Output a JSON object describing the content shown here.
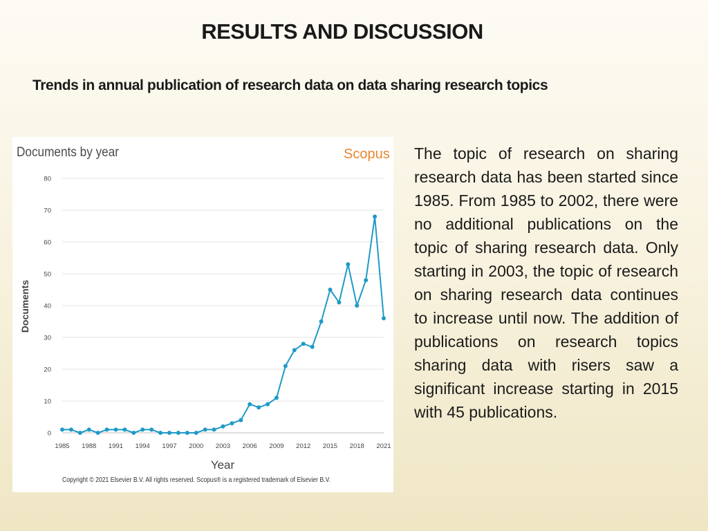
{
  "slide": {
    "title": "RESULTS AND DISCUSSION",
    "subtitle": "Trends in annual publication of research data on data sharing research topics",
    "body": "The topic of research on sharing research data has been started since 1985. From 1985 to 2002, there were no additional publications on the topic of sharing research data. Only starting in 2003, the topic of research on sharing research data continues to increase until now. The addition of publications on research topics sharing data with risers saw a significant increase starting in 2015 with 45 publications."
  },
  "chart_data": {
    "type": "line",
    "title": "Documents by year",
    "brand": "Scopus",
    "xlabel": "Year",
    "ylabel": "Documents",
    "copyright": "Copyright © 2021 Elsevier B.V. All rights reserved. Scopus® is a registered trademark of Elsevier B.V.",
    "xlim": [
      1985,
      2021
    ],
    "ylim": [
      0,
      80
    ],
    "x_ticks": [
      1985,
      1988,
      1991,
      1994,
      1997,
      2000,
      2003,
      2006,
      2009,
      2012,
      2015,
      2018,
      2021
    ],
    "y_ticks": [
      0,
      10,
      20,
      30,
      40,
      50,
      60,
      70,
      80
    ],
    "grid": true,
    "series": [
      {
        "color": "#1f9ac7",
        "x": [
          1985,
          1986,
          1987,
          1988,
          1989,
          1990,
          1991,
          1992,
          1993,
          1994,
          1995,
          1996,
          1997,
          1998,
          1999,
          2000,
          2001,
          2002,
          2003,
          2004,
          2005,
          2006,
          2007,
          2008,
          2009,
          2010,
          2011,
          2012,
          2013,
          2014,
          2015,
          2016,
          2017,
          2018,
          2019,
          2020,
          2021
        ],
        "y": [
          1,
          1,
          0,
          1,
          0,
          1,
          1,
          1,
          0,
          1,
          1,
          0,
          0,
          0,
          0,
          0,
          1,
          1,
          2,
          3,
          4,
          9,
          8,
          9,
          11,
          21,
          26,
          28,
          27,
          35,
          45,
          41,
          53,
          40,
          48,
          68,
          36
        ]
      }
    ]
  }
}
